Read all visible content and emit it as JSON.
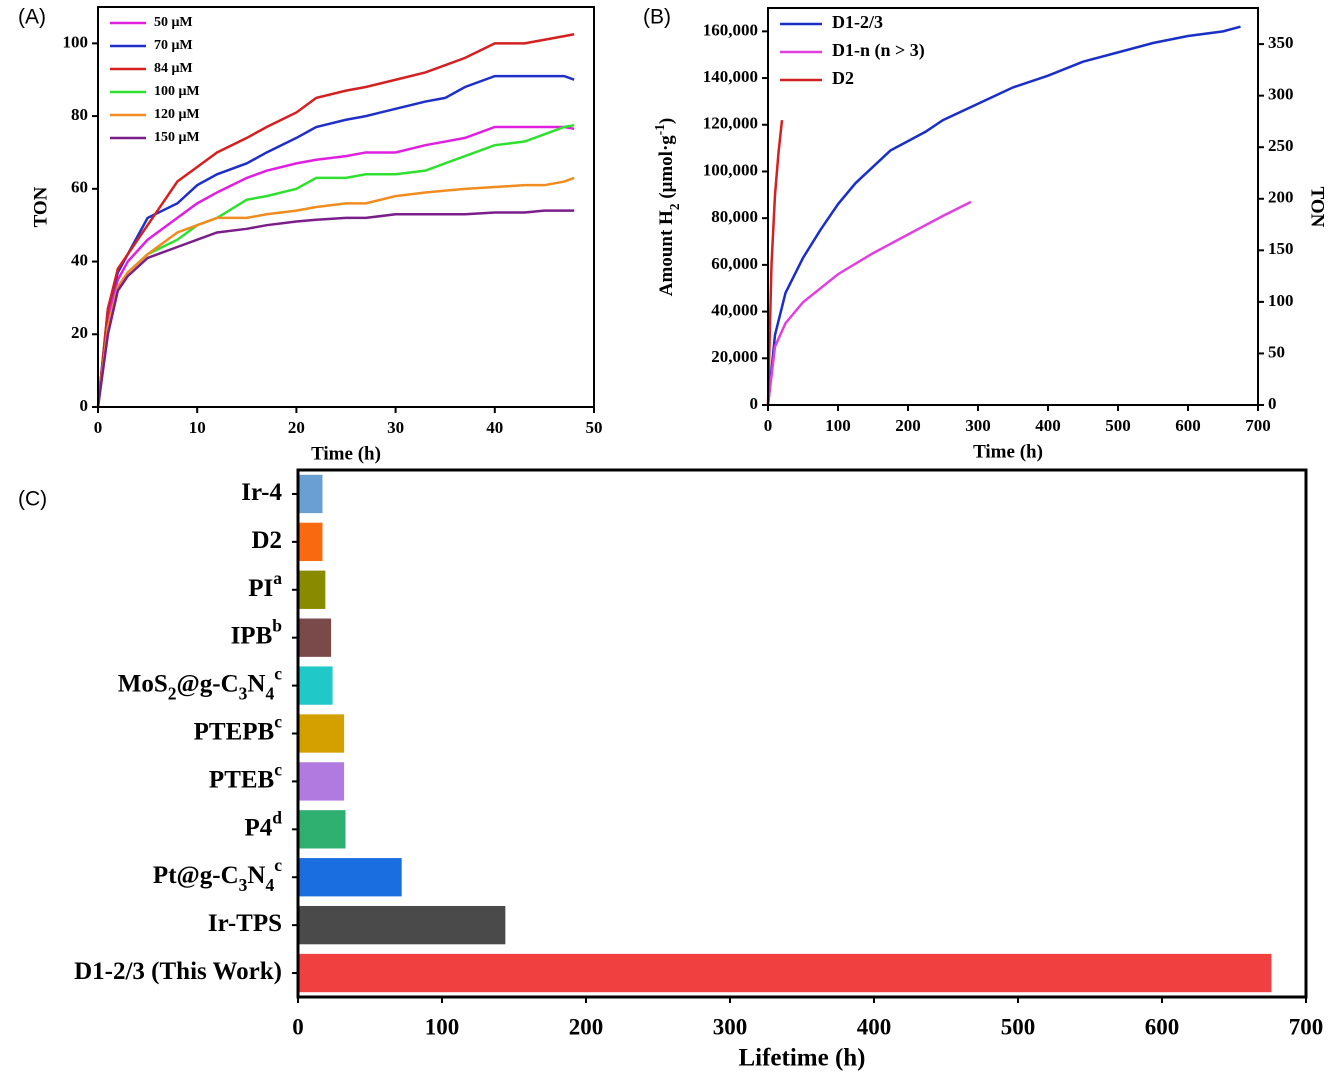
{
  "chart_data": [
    {
      "type": "line",
      "panel": "(A)",
      "x_label": "Time (h)",
      "y_label": "TON",
      "xlim": [
        0,
        50
      ],
      "ylim": [
        0,
        110
      ],
      "xticks": [
        0,
        10,
        20,
        30,
        40,
        50
      ],
      "yticks": [
        0,
        20,
        40,
        60,
        80,
        100
      ],
      "legend": "upper left",
      "x": [
        0,
        1,
        2,
        3,
        5,
        8,
        10,
        12,
        15,
        17,
        20,
        22,
        25,
        27,
        30,
        33,
        35,
        37,
        40,
        43,
        45,
        47,
        48
      ],
      "series": [
        {
          "name": "50 μM",
          "color": "#e020e0",
          "values": [
            0,
            25,
            35,
            40,
            46,
            52,
            56,
            59,
            63,
            65,
            67,
            68,
            69,
            70,
            70,
            72,
            73,
            74,
            77,
            77,
            77,
            77,
            76.5
          ]
        },
        {
          "name": "70 μM",
          "color": "#1f2fc8",
          "values": [
            0,
            27,
            37,
            42,
            52,
            56,
            61,
            64,
            67,
            70,
            74,
            77,
            79,
            80,
            82,
            84,
            85,
            88,
            91,
            91,
            91,
            91,
            90
          ]
        },
        {
          "name": "84 μM",
          "color": "#d42020",
          "values": [
            0,
            27,
            38,
            42,
            50,
            62,
            66,
            70,
            74,
            77,
            81,
            85,
            87,
            88,
            90,
            92,
            94,
            96,
            100,
            100,
            101,
            102,
            102.5
          ]
        },
        {
          "name": "100 μM",
          "color": "#30e030",
          "values": [
            0,
            22,
            33,
            37,
            42,
            46,
            50,
            52,
            57,
            58,
            60,
            63,
            63,
            64,
            64,
            65,
            67,
            69,
            72,
            73,
            75,
            77,
            77.5
          ]
        },
        {
          "name": "120 μM",
          "color": "#f08c20",
          "values": [
            0,
            22,
            33,
            37,
            42,
            48,
            50,
            52,
            52,
            53,
            54,
            55,
            56,
            56,
            58,
            59,
            59.5,
            60,
            60.5,
            61,
            61,
            62,
            63
          ]
        },
        {
          "name": "150 μM",
          "color": "#7a1f8a",
          "values": [
            0,
            20,
            32,
            36,
            41,
            44,
            46,
            48,
            49,
            50,
            51,
            51.5,
            52,
            52,
            53,
            53,
            53,
            53,
            53.5,
            53.5,
            54,
            54,
            54
          ]
        }
      ]
    },
    {
      "type": "line",
      "panel": "(B)",
      "x_label": "Time (h)",
      "y_label": [
        "Amount H",
        {
          "sub": "2"
        },
        " (μmol·g",
        {
          "sup": "-1"
        },
        ")"
      ],
      "y2_label": "TON",
      "xlim": [
        0,
        700
      ],
      "ylim": [
        0,
        170000
      ],
      "y2lim": [
        0,
        385
      ],
      "xticks": [
        0,
        100,
        200,
        300,
        400,
        500,
        600,
        700
      ],
      "yticks": [
        0,
        {
          "value": 20000,
          "label": "20,000"
        },
        {
          "value": 40000,
          "label": "40,000"
        },
        {
          "value": 60000,
          "label": "60,000"
        },
        {
          "value": 80000,
          "label": "80,000"
        },
        {
          "value": 100000,
          "label": "100,000"
        },
        {
          "value": 120000,
          "label": "120,000"
        },
        {
          "value": 140000,
          "label": "140,000"
        },
        {
          "value": 160000,
          "label": "160,000"
        }
      ],
      "y2ticks": [
        0,
        50,
        100,
        150,
        200,
        250,
        300,
        350
      ],
      "legend": "upper left",
      "series": [
        {
          "name": "D1-2/3",
          "color": "#1a2fc8",
          "x": [
            0,
            10,
            25,
            50,
            75,
            100,
            125,
            150,
            175,
            200,
            225,
            250,
            300,
            350,
            400,
            450,
            500,
            550,
            600,
            650,
            675
          ],
          "values": [
            0,
            30000,
            48000,
            63000,
            75000,
            86000,
            95000,
            102000,
            109000,
            113000,
            117000,
            122000,
            129000,
            136000,
            141000,
            147000,
            151000,
            155000,
            158000,
            160000,
            162000
          ]
        },
        {
          "name": "D1-n (n > 3)",
          "color": "#e040e0",
          "x": [
            0,
            10,
            25,
            50,
            100,
            150,
            200,
            250,
            290
          ],
          "values": [
            0,
            25000,
            35000,
            44000,
            56000,
            65000,
            73000,
            81000,
            87000
          ]
        },
        {
          "name": "D2",
          "color": "#d42020",
          "x": [
            0,
            5,
            10,
            15,
            20
          ],
          "values": [
            0,
            60000,
            90000,
            108000,
            122000
          ]
        }
      ]
    },
    {
      "type": "hbar",
      "panel": "(C)",
      "x_label": "Lifetime (h)",
      "xlim": [
        0,
        700
      ],
      "xticks": [
        0,
        100,
        200,
        300,
        400,
        500,
        600,
        700
      ],
      "categories": [
        [
          "Ir-4"
        ],
        [
          "D2"
        ],
        [
          "PI",
          {
            "sup": "a"
          }
        ],
        [
          "IPB",
          {
            "sup": "b"
          }
        ],
        [
          "MoS",
          {
            "sub": "2"
          },
          "@g-C",
          {
            "sub": "3"
          },
          "N",
          {
            "sub": "4"
          },
          {
            "sup": "c"
          }
        ],
        [
          "PTEPB",
          {
            "sup": "c"
          }
        ],
        [
          "PTEB",
          {
            "sup": "c"
          }
        ],
        [
          "P4",
          {
            "sup": "d"
          }
        ],
        [
          "Pt@g-C",
          {
            "sub": "3"
          },
          "N",
          {
            "sub": "4"
          },
          {
            "sup": "c"
          }
        ],
        [
          "Ir-TPS"
        ],
        [
          "D1-2/3 (This Work)"
        ]
      ],
      "values": [
        17,
        17,
        19,
        23,
        24,
        32,
        32,
        33,
        72,
        144,
        676
      ],
      "colors": [
        "#6a9fd4",
        "#f96a10",
        "#8a8a00",
        "#7a4a4a",
        "#20c8c8",
        "#d4a000",
        "#b07ae0",
        "#30b070",
        "#1a6ee0",
        "#4a4a4a",
        "#f04040"
      ],
      "highlight": {
        "index": 10,
        "color": "#e8202a"
      }
    }
  ]
}
